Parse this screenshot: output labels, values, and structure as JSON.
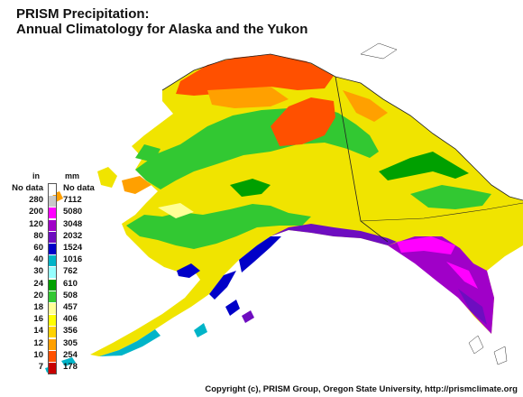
{
  "title": {
    "line1": "PRISM Precipitation:",
    "line2": "Annual Climatology for Alaska and the Yukon"
  },
  "legend": {
    "in_header": "in",
    "mm_header": "mm",
    "entries": [
      {
        "in": "No data",
        "mm": "No data",
        "color": "#ffffff"
      },
      {
        "in": "280",
        "mm": "7112",
        "color": "#c8c8c8"
      },
      {
        "in": "200",
        "mm": "5080",
        "color": "#ff00ff"
      },
      {
        "in": "120",
        "mm": "3048",
        "color": "#a000c8"
      },
      {
        "in": "80",
        "mm": "2032",
        "color": "#6e0dc0"
      },
      {
        "in": "60",
        "mm": "1524",
        "color": "#0000c8"
      },
      {
        "in": "40",
        "mm": "1016",
        "color": "#00b4c8"
      },
      {
        "in": "30",
        "mm": "762",
        "color": "#96ffff"
      },
      {
        "in": "24",
        "mm": "610",
        "color": "#00a000"
      },
      {
        "in": "20",
        "mm": "508",
        "color": "#32c832"
      },
      {
        "in": "18",
        "mm": "457",
        "color": "#ffff96"
      },
      {
        "in": "16",
        "mm": "406",
        "color": "#ffff00"
      },
      {
        "in": "14",
        "mm": "356",
        "color": "#ffd200"
      },
      {
        "in": "12",
        "mm": "305",
        "color": "#ffa000"
      },
      {
        "in": "10",
        "mm": "254",
        "color": "#ff5000"
      },
      {
        "in": "7",
        "mm": "178",
        "color": "#c80000"
      }
    ]
  },
  "copyright": "Copyright (c), PRISM Group, Oregon State University, http://prismclimate.org"
}
